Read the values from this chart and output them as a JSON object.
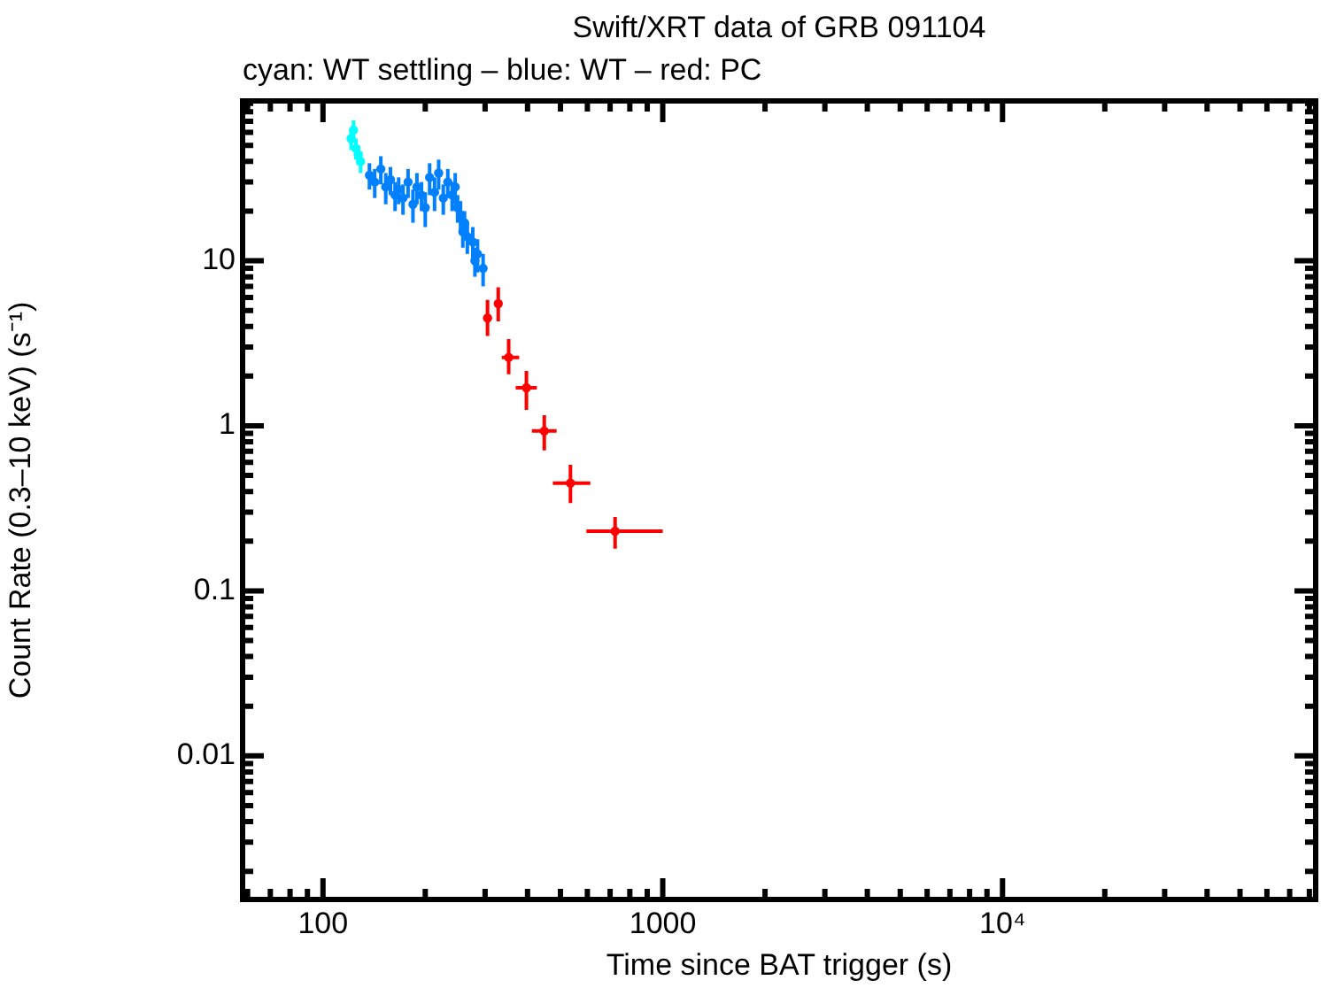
{
  "chart_data": {
    "type": "scatter",
    "title": "Swift/XRT data of GRB 091104",
    "subtitle": "cyan: WT settling – blue: WT – red: PC",
    "xlabel": "Time since BAT trigger (s)",
    "ylabel": "Count Rate (0.3–10 keV) (s⁻¹)",
    "log": "xy",
    "grid": false,
    "legend": false,
    "xlim": [
      58,
      83500
    ],
    "ylim": [
      0.00135,
      93
    ],
    "xticks": [
      {
        "value": 60,
        "label": null
      },
      {
        "value": 70,
        "label": null
      },
      {
        "value": 80,
        "label": null
      },
      {
        "value": 90,
        "label": null
      },
      100,
      {
        "value": 200,
        "label": null
      },
      {
        "value": 300,
        "label": null
      },
      {
        "value": 400,
        "label": null
      },
      {
        "value": 500,
        "label": null
      },
      {
        "value": 600,
        "label": null
      },
      {
        "value": 700,
        "label": null
      },
      {
        "value": 800,
        "label": null
      },
      {
        "value": 900,
        "label": null
      },
      1000,
      {
        "value": 2000,
        "label": null
      },
      {
        "value": 3000,
        "label": null
      },
      {
        "value": 4000,
        "label": null
      },
      {
        "value": 5000,
        "label": null
      },
      {
        "value": 6000,
        "label": null
      },
      {
        "value": 7000,
        "label": null
      },
      {
        "value": 8000,
        "label": null
      },
      {
        "value": 9000,
        "label": null
      },
      {
        "value": 10000,
        "label": "10⁴"
      },
      {
        "value": 20000,
        "label": null
      },
      {
        "value": 30000,
        "label": null
      },
      {
        "value": 40000,
        "label": null
      },
      {
        "value": 50000,
        "label": null
      },
      {
        "value": 60000,
        "label": null
      },
      {
        "value": 70000,
        "label": null
      },
      {
        "value": 80000,
        "label": null
      }
    ],
    "yticks": [
      {
        "value": 0.002,
        "label": null
      },
      {
        "value": 0.003,
        "label": null
      },
      {
        "value": 0.004,
        "label": null
      },
      {
        "value": 0.005,
        "label": null
      },
      {
        "value": 0.006,
        "label": null
      },
      {
        "value": 0.007,
        "label": null
      },
      {
        "value": 0.008,
        "label": null
      },
      {
        "value": 0.009,
        "label": null
      },
      0.01,
      {
        "value": 0.02,
        "label": null
      },
      {
        "value": 0.03,
        "label": null
      },
      {
        "value": 0.04,
        "label": null
      },
      {
        "value": 0.05,
        "label": null
      },
      {
        "value": 0.06,
        "label": null
      },
      {
        "value": 0.07,
        "label": null
      },
      {
        "value": 0.08,
        "label": null
      },
      {
        "value": 0.09,
        "label": null
      },
      0.1,
      {
        "value": 0.2,
        "label": null
      },
      {
        "value": 0.3,
        "label": null
      },
      {
        "value": 0.4,
        "label": null
      },
      {
        "value": 0.5,
        "label": null
      },
      {
        "value": 0.6,
        "label": null
      },
      {
        "value": 0.7,
        "label": null
      },
      {
        "value": 0.8,
        "label": null
      },
      {
        "value": 0.9,
        "label": null
      },
      1,
      {
        "value": 2,
        "label": null
      },
      {
        "value": 3,
        "label": null
      },
      {
        "value": 4,
        "label": null
      },
      {
        "value": 5,
        "label": null
      },
      {
        "value": 6,
        "label": null
      },
      {
        "value": 7,
        "label": null
      },
      {
        "value": 8,
        "label": null
      },
      {
        "value": 9,
        "label": null
      },
      10,
      {
        "value": 20,
        "label": null
      },
      {
        "value": 30,
        "label": null
      },
      {
        "value": 40,
        "label": null
      },
      {
        "value": 50,
        "label": null
      },
      {
        "value": 60,
        "label": null
      },
      {
        "value": 70,
        "label": null
      },
      {
        "value": 80,
        "label": null
      },
      {
        "value": 90,
        "label": null
      }
    ],
    "series": [
      {
        "color": "#00ffff",
        "x": [
          121,
          123,
          125,
          127,
          129
        ],
        "values": [
          55,
          62,
          48,
          44,
          40
        ],
        "errors": [
          8,
          9,
          7,
          6,
          6
        ]
      },
      {
        "color": "#0080ff",
        "x": [
          137,
          142,
          148,
          153,
          158,
          163,
          167,
          172,
          178,
          184,
          189,
          195,
          200,
          206,
          213,
          219,
          226,
          233,
          240,
          245,
          249,
          254,
          258,
          261,
          266,
          276,
          280,
          285,
          296
        ],
        "values": [
          33,
          30,
          36,
          28,
          31,
          25,
          27,
          24,
          30,
          22,
          28,
          25,
          21,
          32,
          26,
          34,
          24,
          30,
          25,
          28,
          21,
          19,
          15,
          17,
          14,
          13,
          10,
          11,
          9
        ],
        "errors": [
          6,
          6,
          7,
          6,
          6,
          5,
          5,
          5,
          6,
          5,
          6,
          5,
          5,
          7,
          6,
          7,
          5,
          6,
          5,
          6,
          4,
          4,
          3,
          3,
          3,
          3,
          2,
          2.5,
          2
        ]
      },
      {
        "color": "#ff0000",
        "x": [
          305,
          328,
          352,
          397,
          448,
          535,
          724
        ],
        "values": [
          4.5,
          5.5,
          2.6,
          1.7,
          0.93,
          0.45,
          0.23
        ],
        "errors": [
          [
            3.5,
            5.8
          ],
          [
            4.3,
            6.9
          ],
          [
            2.05,
            3.35
          ],
          [
            1.25,
            2.15
          ],
          [
            0.71,
            1.16
          ],
          [
            0.34,
            0.58
          ],
          [
            0.18,
            0.28
          ]
        ],
        "xerrors": [
          [
            297,
            312
          ],
          [
            320,
            336
          ],
          [
            336,
            378
          ],
          [
            369,
            426
          ],
          [
            412,
            487
          ],
          [
            475,
            612
          ],
          [
            596,
            1000
          ]
        ]
      }
    ]
  }
}
